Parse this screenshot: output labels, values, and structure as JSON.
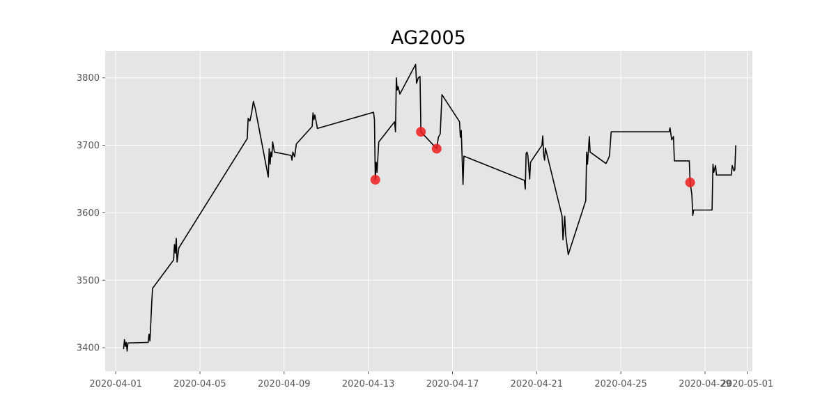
{
  "chart_data": {
    "type": "line",
    "title": "AG2005",
    "xlabel": "",
    "ylabel": "",
    "x_axis_type": "date",
    "xlim": [
      "2020-03-31T12:00",
      "2020-05-01T06:00"
    ],
    "ylim": [
      3365,
      3840
    ],
    "x_ticks": [
      "2020-04-01",
      "2020-04-05",
      "2020-04-09",
      "2020-04-13",
      "2020-04-17",
      "2020-04-21",
      "2020-04-25",
      "2020-04-29",
      "2020-05-01"
    ],
    "y_ticks": [
      3400,
      3500,
      3600,
      3700,
      3800
    ],
    "grid": true,
    "legend": "none",
    "colors": {
      "line": "#000000",
      "markers": "#ee1c1c",
      "plot_background": "#e5e5e5",
      "grid": "#ffffff"
    },
    "series": [
      {
        "values": [
          [
            "2020-04-01T09:00",
            3398
          ],
          [
            "2020-04-01T10:00",
            3412
          ],
          [
            "2020-04-01T11:00",
            3402
          ],
          [
            "2020-04-01T12:00",
            3408
          ],
          [
            "2020-04-01T13:00",
            3395
          ],
          [
            "2020-04-01T14:00",
            3407
          ],
          [
            "2020-04-02T13:00",
            3408
          ],
          [
            "2020-04-02T14:00",
            3420
          ],
          [
            "2020-04-02T15:00",
            3410
          ],
          [
            "2020-04-02T16:00",
            3437
          ],
          [
            "2020-04-02T17:00",
            3465
          ],
          [
            "2020-04-02T18:00",
            3488
          ],
          [
            "2020-04-03T18:00",
            3530
          ],
          [
            "2020-04-03T19:00",
            3553
          ],
          [
            "2020-04-03T20:00",
            3540
          ],
          [
            "2020-04-03T21:00",
            3562
          ],
          [
            "2020-04-03T22:00",
            3527
          ],
          [
            "2020-04-04T00:00",
            3548
          ],
          [
            "2020-04-07T06:00",
            3710
          ],
          [
            "2020-04-07T07:00",
            3740
          ],
          [
            "2020-04-07T09:00",
            3736
          ],
          [
            "2020-04-07T11:00",
            3748
          ],
          [
            "2020-04-07T13:00",
            3765
          ],
          [
            "2020-04-07T15:00",
            3755
          ],
          [
            "2020-04-08T06:00",
            3653
          ],
          [
            "2020-04-08T07:00",
            3695
          ],
          [
            "2020-04-08T08:00",
            3672
          ],
          [
            "2020-04-08T09:00",
            3690
          ],
          [
            "2020-04-08T10:00",
            3683
          ],
          [
            "2020-04-08T11:00",
            3705
          ],
          [
            "2020-04-08T13:00",
            3690
          ],
          [
            "2020-04-09T08:00",
            3685
          ],
          [
            "2020-04-09T09:00",
            3678
          ],
          [
            "2020-04-09T10:00",
            3690
          ],
          [
            "2020-04-09T12:00",
            3683
          ],
          [
            "2020-04-09T14:00",
            3702
          ],
          [
            "2020-04-10T08:00",
            3728
          ],
          [
            "2020-04-10T09:00",
            3748
          ],
          [
            "2020-04-10T10:00",
            3738
          ],
          [
            "2020-04-10T11:00",
            3745
          ],
          [
            "2020-04-10T13:00",
            3732
          ],
          [
            "2020-04-10T14:00",
            3725
          ],
          [
            "2020-04-13T06:00",
            3749
          ],
          [
            "2020-04-13T07:00",
            3738
          ],
          [
            "2020-04-13T08:00",
            3649
          ],
          [
            "2020-04-13T09:00",
            3675
          ],
          [
            "2020-04-13T10:00",
            3660
          ],
          [
            "2020-04-13T12:00",
            3705
          ],
          [
            "2020-04-14T06:00",
            3735
          ],
          [
            "2020-04-14T07:00",
            3720
          ],
          [
            "2020-04-14T08:00",
            3800
          ],
          [
            "2020-04-14T09:00",
            3782
          ],
          [
            "2020-04-14T10:00",
            3787
          ],
          [
            "2020-04-14T12:00",
            3776
          ],
          [
            "2020-04-15T06:00",
            3820
          ],
          [
            "2020-04-15T07:00",
            3792
          ],
          [
            "2020-04-15T09:00",
            3800
          ],
          [
            "2020-04-15T11:00",
            3802
          ],
          [
            "2020-04-15T12:00",
            3720
          ],
          [
            "2020-04-16T06:00",
            3695
          ],
          [
            "2020-04-16T08:00",
            3712
          ],
          [
            "2020-04-16T10:00",
            3717
          ],
          [
            "2020-04-16T12:00",
            3775
          ],
          [
            "2020-04-17T08:00",
            3735
          ],
          [
            "2020-04-17T09:00",
            3712
          ],
          [
            "2020-04-17T10:00",
            3722
          ],
          [
            "2020-04-17T12:00",
            3642
          ],
          [
            "2020-04-17T13:00",
            3684
          ],
          [
            "2020-04-20T10:00",
            3648
          ],
          [
            "2020-04-20T11:00",
            3635
          ],
          [
            "2020-04-20T12:00",
            3688
          ],
          [
            "2020-04-20T13:00",
            3690
          ],
          [
            "2020-04-20T14:00",
            3685
          ],
          [
            "2020-04-20T16:00",
            3650
          ],
          [
            "2020-04-20T17:00",
            3675
          ],
          [
            "2020-04-21T06:00",
            3700
          ],
          [
            "2020-04-21T07:00",
            3714
          ],
          [
            "2020-04-21T08:00",
            3686
          ],
          [
            "2020-04-21T09:00",
            3678
          ],
          [
            "2020-04-21T10:00",
            3696
          ],
          [
            "2020-04-21T13:00",
            3680
          ],
          [
            "2020-04-22T05:00",
            3595
          ],
          [
            "2020-04-22T06:00",
            3560
          ],
          [
            "2020-04-22T08:00",
            3595
          ],
          [
            "2020-04-22T09:00",
            3568
          ],
          [
            "2020-04-22T12:00",
            3538
          ],
          [
            "2020-04-23T08:00",
            3618
          ],
          [
            "2020-04-23T09:00",
            3690
          ],
          [
            "2020-04-23T10:00",
            3672
          ],
          [
            "2020-04-23T12:00",
            3713
          ],
          [
            "2020-04-23T13:00",
            3690
          ],
          [
            "2020-04-24T07:00",
            3673
          ],
          [
            "2020-04-24T09:00",
            3678
          ],
          [
            "2020-04-24T11:00",
            3684
          ],
          [
            "2020-04-24T13:00",
            3720
          ],
          [
            "2020-04-27T07:00",
            3720
          ],
          [
            "2020-04-27T08:00",
            3726
          ],
          [
            "2020-04-27T10:00",
            3708
          ],
          [
            "2020-04-27T12:00",
            3713
          ],
          [
            "2020-04-27T13:00",
            3677
          ],
          [
            "2020-04-28T06:00",
            3677
          ],
          [
            "2020-04-28T07:00",
            3645
          ],
          [
            "2020-04-28T09:00",
            3627
          ],
          [
            "2020-04-28T10:00",
            3596
          ],
          [
            "2020-04-28T11:00",
            3604
          ],
          [
            "2020-04-29T08:00",
            3604
          ],
          [
            "2020-04-29T09:00",
            3672
          ],
          [
            "2020-04-29T10:00",
            3660
          ],
          [
            "2020-04-29T12:00",
            3670
          ],
          [
            "2020-04-29T13:00",
            3656
          ],
          [
            "2020-04-30T06:00",
            3656
          ],
          [
            "2020-04-30T07:00",
            3670
          ],
          [
            "2020-04-30T09:00",
            3662
          ],
          [
            "2020-04-30T10:00",
            3664
          ],
          [
            "2020-04-30T11:00",
            3700
          ]
        ]
      }
    ],
    "markers": [
      {
        "x": "2020-04-13T08:00",
        "y": 3649
      },
      {
        "x": "2020-04-15T12:00",
        "y": 3720
      },
      {
        "x": "2020-04-16T06:00",
        "y": 3695
      },
      {
        "x": "2020-04-28T07:00",
        "y": 3645
      }
    ]
  }
}
